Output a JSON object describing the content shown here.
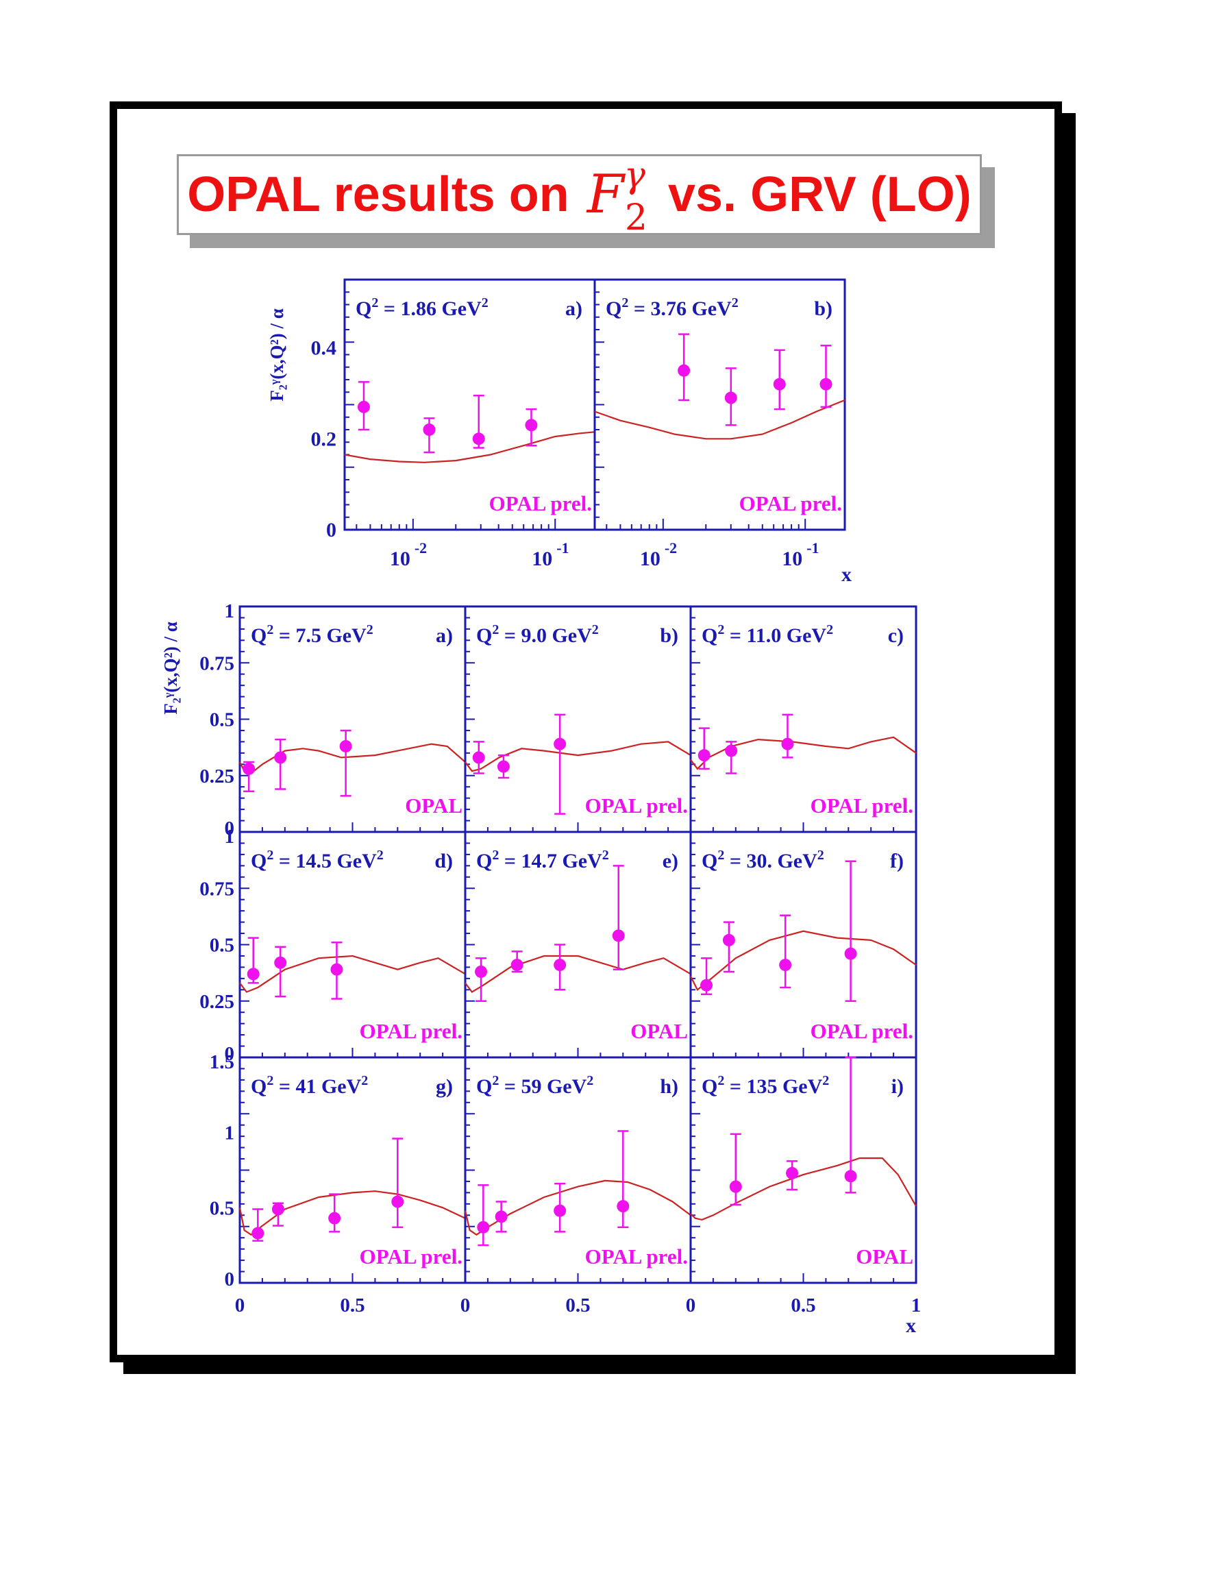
{
  "title": {
    "prefix": "OPAL results on",
    "symbol_base": "F",
    "symbol_sub": "2",
    "symbol_sup": "γ",
    "suffix": "vs. GRV (LO)"
  },
  "colors": {
    "title": "#ee1111",
    "axes": "#1a1ab0",
    "data": "#ee11ee",
    "theory": "#cc2222"
  },
  "chart_data": [
    {
      "type": "scatter",
      "group": "top",
      "ylabel": "F₂ᵞ(x,Q²) / α",
      "xlabel": "x",
      "xscale": "log",
      "xlim": [
        0.0033,
        0.19
      ],
      "ylim": [
        0,
        0.55
      ],
      "yticks": [
        0,
        0.2,
        0.4
      ],
      "ytick_labels": [
        "0",
        "0.2",
        "0.4"
      ],
      "xtick_labels": [
        {
          "value": 0.01,
          "base": "10",
          "exp": "-2"
        },
        {
          "value": 0.1,
          "base": "10",
          "exp": "-1"
        }
      ],
      "panels": [
        {
          "q2": "1.86",
          "tag": "a)",
          "label": "OPAL prel.",
          "points": [
            [
              0.0045,
              0.27,
              0.055,
              0.05
            ],
            [
              0.013,
              0.22,
              0.025,
              0.05
            ],
            [
              0.029,
              0.2,
              0.095,
              0.02
            ],
            [
              0.068,
              0.23,
              0.035,
              0.045
            ]
          ],
          "curve": [
            [
              0.0033,
              0.165
            ],
            [
              0.005,
              0.155
            ],
            [
              0.008,
              0.15
            ],
            [
              0.012,
              0.148
            ],
            [
              0.02,
              0.152
            ],
            [
              0.035,
              0.165
            ],
            [
              0.06,
              0.185
            ],
            [
              0.1,
              0.205
            ],
            [
              0.15,
              0.212
            ],
            [
              0.19,
              0.215
            ]
          ]
        },
        {
          "q2": "3.76",
          "tag": "b)",
          "label": "OPAL prel.",
          "points": [
            [
              0.014,
              0.35,
              0.08,
              0.065
            ],
            [
              0.03,
              0.29,
              0.065,
              0.06
            ],
            [
              0.066,
              0.32,
              0.075,
              0.055
            ],
            [
              0.14,
              0.32,
              0.085,
              0.05
            ]
          ],
          "curve": [
            [
              0.0033,
              0.26
            ],
            [
              0.005,
              0.24
            ],
            [
              0.008,
              0.225
            ],
            [
              0.012,
              0.21
            ],
            [
              0.02,
              0.2
            ],
            [
              0.03,
              0.2
            ],
            [
              0.05,
              0.21
            ],
            [
              0.08,
              0.235
            ],
            [
              0.12,
              0.26
            ],
            [
              0.19,
              0.285
            ]
          ]
        }
      ]
    },
    {
      "type": "scatter",
      "group": "bottom",
      "ylabel": "F₂ᵞ(x,Q²) / α",
      "xlabel": "x",
      "xlim": [
        0,
        1
      ],
      "xtick_labels": [
        "0",
        "0.5",
        "1"
      ],
      "rows": [
        {
          "ylim": [
            0,
            1
          ],
          "yticks": [
            0,
            0.25,
            0.5,
            0.75,
            1
          ],
          "ytick_labels": [
            "0",
            "0.25",
            "0.5",
            "0.75",
            "1"
          ]
        },
        {
          "ylim": [
            0,
            1
          ],
          "yticks": [
            0,
            0.25,
            0.5,
            0.75,
            1
          ],
          "ytick_labels": [
            "0",
            "0.25",
            "0.5",
            "0.75",
            "1"
          ]
        },
        {
          "ylim": [
            0,
            1.5
          ],
          "yticks": [
            0,
            0.5,
            1,
            1.5
          ],
          "ytick_labels": [
            "0",
            "0.5",
            "1",
            "1.5"
          ]
        }
      ],
      "panels": [
        {
          "row": 0,
          "col": 0,
          "q2": "7.5",
          "tag": "a)",
          "label": "OPAL",
          "points": [
            [
              0.04,
              0.28,
              0.03,
              0.1
            ],
            [
              0.18,
              0.33,
              0.08,
              0.14
            ],
            [
              0.47,
              0.38,
              0.07,
              0.22
            ]
          ],
          "curve": [
            [
              0.0,
              0.31
            ],
            [
              0.02,
              0.27
            ],
            [
              0.05,
              0.26
            ],
            [
              0.1,
              0.3
            ],
            [
              0.2,
              0.36
            ],
            [
              0.28,
              0.37
            ],
            [
              0.35,
              0.36
            ],
            [
              0.45,
              0.33
            ],
            [
              0.6,
              0.34
            ],
            [
              0.7,
              0.36
            ],
            [
              0.85,
              0.39
            ],
            [
              0.92,
              0.38
            ],
            [
              1.0,
              0.31
            ]
          ]
        },
        {
          "row": 0,
          "col": 1,
          "q2": "9.0",
          "tag": "b)",
          "label": "OPAL prel.",
          "points": [
            [
              0.06,
              0.33,
              0.07,
              0.07
            ],
            [
              0.17,
              0.29,
              0.05,
              0.05
            ],
            [
              0.42,
              0.39,
              0.13,
              0.31
            ]
          ],
          "curve": [
            [
              0.0,
              0.31
            ],
            [
              0.03,
              0.27
            ],
            [
              0.07,
              0.28
            ],
            [
              0.15,
              0.33
            ],
            [
              0.25,
              0.37
            ],
            [
              0.35,
              0.36
            ],
            [
              0.5,
              0.34
            ],
            [
              0.65,
              0.36
            ],
            [
              0.78,
              0.39
            ],
            [
              0.9,
              0.4
            ],
            [
              1.0,
              0.34
            ]
          ]
        },
        {
          "row": 0,
          "col": 2,
          "q2": "11.0",
          "tag": "c)",
          "label": "OPAL prel.",
          "points": [
            [
              0.06,
              0.34,
              0.12,
              0.06
            ],
            [
              0.18,
              0.36,
              0.04,
              0.1
            ],
            [
              0.43,
              0.39,
              0.13,
              0.06
            ]
          ],
          "curve": [
            [
              0.0,
              0.32
            ],
            [
              0.03,
              0.28
            ],
            [
              0.08,
              0.33
            ],
            [
              0.18,
              0.38
            ],
            [
              0.3,
              0.41
            ],
            [
              0.45,
              0.4
            ],
            [
              0.6,
              0.38
            ],
            [
              0.7,
              0.37
            ],
            [
              0.8,
              0.4
            ],
            [
              0.9,
              0.42
            ],
            [
              1.0,
              0.35
            ]
          ]
        },
        {
          "row": 1,
          "col": 0,
          "q2": "14.5",
          "tag": "d)",
          "label": "OPAL prel.",
          "points": [
            [
              0.06,
              0.37,
              0.16,
              0.04
            ],
            [
              0.18,
              0.42,
              0.07,
              0.15
            ],
            [
              0.43,
              0.39,
              0.12,
              0.13
            ]
          ],
          "curve": [
            [
              0.0,
              0.33
            ],
            [
              0.03,
              0.29
            ],
            [
              0.08,
              0.31
            ],
            [
              0.2,
              0.39
            ],
            [
              0.35,
              0.44
            ],
            [
              0.5,
              0.45
            ],
            [
              0.6,
              0.42
            ],
            [
              0.7,
              0.39
            ],
            [
              0.8,
              0.42
            ],
            [
              0.88,
              0.44
            ],
            [
              1.0,
              0.37
            ]
          ]
        },
        {
          "row": 1,
          "col": 1,
          "q2": "14.7",
          "tag": "e)",
          "label": "OPAL",
          "points": [
            [
              0.07,
              0.38,
              0.06,
              0.13
            ],
            [
              0.23,
              0.41,
              0.06,
              0.03
            ],
            [
              0.42,
              0.41,
              0.09,
              0.11
            ],
            [
              0.68,
              0.54,
              0.31,
              0.15
            ]
          ],
          "curve": [
            [
              0.0,
              0.33
            ],
            [
              0.03,
              0.29
            ],
            [
              0.08,
              0.32
            ],
            [
              0.2,
              0.4
            ],
            [
              0.35,
              0.45
            ],
            [
              0.5,
              0.45
            ],
            [
              0.6,
              0.42
            ],
            [
              0.7,
              0.39
            ],
            [
              0.8,
              0.42
            ],
            [
              0.88,
              0.44
            ],
            [
              1.0,
              0.37
            ]
          ]
        },
        {
          "row": 1,
          "col": 2,
          "q2": "30.",
          "tag": "f)",
          "label": "OPAL prel.",
          "points": [
            [
              0.07,
              0.32,
              0.12,
              0.04
            ],
            [
              0.17,
              0.52,
              0.08,
              0.14
            ],
            [
              0.42,
              0.41,
              0.22,
              0.1
            ],
            [
              0.71,
              0.46,
              0.41,
              0.21
            ]
          ],
          "curve": [
            [
              0.0,
              0.36
            ],
            [
              0.03,
              0.3
            ],
            [
              0.08,
              0.34
            ],
            [
              0.2,
              0.44
            ],
            [
              0.35,
              0.52
            ],
            [
              0.5,
              0.56
            ],
            [
              0.65,
              0.53
            ],
            [
              0.8,
              0.52
            ],
            [
              0.9,
              0.48
            ],
            [
              1.0,
              0.41
            ]
          ]
        },
        {
          "row": 2,
          "col": 0,
          "q2": "41",
          "tag": "g)",
          "label": "OPAL prel.",
          "points": [
            [
              0.08,
              0.33,
              0.16,
              0.05
            ],
            [
              0.17,
              0.49,
              0.04,
              0.11
            ],
            [
              0.42,
              0.43,
              0.16,
              0.09
            ],
            [
              0.7,
              0.54,
              0.42,
              0.17
            ]
          ],
          "curve": [
            [
              0.0,
              0.5
            ],
            [
              0.02,
              0.35
            ],
            [
              0.05,
              0.32
            ],
            [
              0.1,
              0.38
            ],
            [
              0.2,
              0.49
            ],
            [
              0.35,
              0.57
            ],
            [
              0.5,
              0.6
            ],
            [
              0.6,
              0.61
            ],
            [
              0.7,
              0.59
            ],
            [
              0.8,
              0.55
            ],
            [
              0.9,
              0.5
            ],
            [
              1.0,
              0.43
            ]
          ]
        },
        {
          "row": 2,
          "col": 1,
          "q2": "59",
          "tag": "h)",
          "label": "OPAL prel.",
          "points": [
            [
              0.08,
              0.37,
              0.28,
              0.12
            ],
            [
              0.16,
              0.44,
              0.1,
              0.1
            ],
            [
              0.42,
              0.48,
              0.18,
              0.14
            ],
            [
              0.7,
              0.51,
              0.5,
              0.14
            ]
          ],
          "curve": [
            [
              0.0,
              0.48
            ],
            [
              0.02,
              0.35
            ],
            [
              0.05,
              0.32
            ],
            [
              0.1,
              0.37
            ],
            [
              0.2,
              0.46
            ],
            [
              0.35,
              0.57
            ],
            [
              0.5,
              0.64
            ],
            [
              0.62,
              0.68
            ],
            [
              0.72,
              0.67
            ],
            [
              0.82,
              0.62
            ],
            [
              0.92,
              0.54
            ],
            [
              1.0,
              0.45
            ]
          ]
        },
        {
          "row": 2,
          "col": 2,
          "q2": "135",
          "tag": "i)",
          "label": "OPAL",
          "points": [
            [
              0.2,
              0.64,
              0.35,
              0.12
            ],
            [
              0.45,
              0.73,
              0.08,
              0.11
            ],
            [
              0.71,
              0.71,
              0.83,
              0.11
            ]
          ],
          "curve": [
            [
              0.0,
              0.46
            ],
            [
              0.02,
              0.43
            ],
            [
              0.05,
              0.42
            ],
            [
              0.1,
              0.45
            ],
            [
              0.2,
              0.53
            ],
            [
              0.35,
              0.64
            ],
            [
              0.5,
              0.72
            ],
            [
              0.65,
              0.78
            ],
            [
              0.75,
              0.83
            ],
            [
              0.85,
              0.83
            ],
            [
              0.92,
              0.72
            ],
            [
              1.0,
              0.51
            ]
          ]
        }
      ]
    }
  ]
}
